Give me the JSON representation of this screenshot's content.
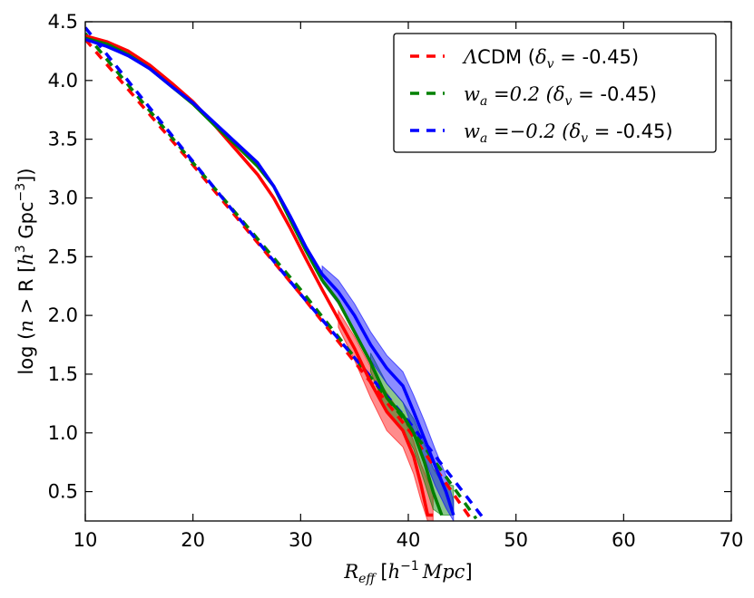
{
  "chart_data": {
    "type": "line",
    "xlim": [
      10,
      70
    ],
    "ylim": [
      0.25,
      4.5
    ],
    "xticks": [
      10,
      20,
      30,
      40,
      50,
      60,
      70
    ],
    "yticks": [
      0.5,
      1.0,
      1.5,
      2.0,
      2.5,
      3.0,
      3.5,
      4.0,
      4.5
    ],
    "xtick_labels": [
      "10",
      "20",
      "30",
      "40",
      "50",
      "60",
      "70"
    ],
    "ytick_labels": [
      "0.5",
      "1.0",
      "1.5",
      "2.0",
      "2.5",
      "3.0",
      "3.5",
      "4.0",
      "4.5"
    ],
    "xlabel": {
      "var": "R",
      "sub": "eff",
      "unit_open": "[",
      "unit_var": "h",
      "unit_exp": "−1",
      "unit_rest": "Mpc",
      "unit_close": "]"
    },
    "ylabel": {
      "pre": "log (",
      "var": "n",
      "mid": " > R [",
      "h": "h",
      "hexp": "3",
      "gpc": "  Gpc",
      "gexp": "−3",
      "close": "])"
    },
    "legend_position": "top-right",
    "series": [
      {
        "name": "LCDM",
        "color": "#ff0000",
        "legend": {
          "lead": "Λ",
          "text": "CDM (",
          "delta": "δ",
          "sub": "v",
          "tail": " = -0.45)"
        },
        "simulation": {
          "x": [
            10,
            12,
            14,
            16,
            18,
            20,
            22,
            24,
            26,
            27.5,
            29,
            30.5,
            32,
            33.5,
            35,
            36.5,
            38,
            39.5,
            40.5,
            41.2,
            41.8,
            42.3
          ],
          "y": [
            4.38,
            4.33,
            4.25,
            4.13,
            3.98,
            3.82,
            3.62,
            3.41,
            3.2,
            3.0,
            2.75,
            2.48,
            2.22,
            1.97,
            1.72,
            1.43,
            1.18,
            1.02,
            0.8,
            0.55,
            0.3,
            0.3
          ]
        },
        "band": {
          "x": [
            33.5,
            35,
            36.5,
            38,
            39.5,
            40.5,
            41.2,
            41.8,
            42.3
          ],
          "upper": [
            2.04,
            1.82,
            1.56,
            1.34,
            1.14,
            0.93,
            0.73,
            0.6,
            0.5
          ],
          "lower": [
            1.9,
            1.62,
            1.3,
            1.02,
            0.88,
            0.65,
            0.42,
            0.25,
            0.25
          ]
        },
        "theory": {
          "x": [
            10,
            20,
            30,
            40,
            45.8
          ],
          "y": [
            4.35,
            3.28,
            2.18,
            1.03,
            0.27
          ]
        }
      },
      {
        "name": "wa=0.2",
        "color": "#008000",
        "legend": {
          "var": "w",
          "sub": "a",
          "eq": " =0.2 (",
          "delta": "δ",
          "dsub": "v",
          "tail": " = -0.45)"
        },
        "simulation": {
          "x": [
            10,
            12,
            14,
            16,
            18,
            20,
            22,
            24,
            26,
            27.5,
            29,
            30.5,
            32,
            33.5,
            35,
            36.5,
            38,
            39.5,
            40.5,
            41.5,
            42.3,
            43.1
          ],
          "y": [
            4.36,
            4.31,
            4.22,
            4.1,
            3.95,
            3.8,
            3.62,
            3.45,
            3.27,
            3.1,
            2.82,
            2.55,
            2.3,
            2.12,
            1.86,
            1.6,
            1.3,
            1.15,
            1.0,
            0.75,
            0.5,
            0.3
          ]
        },
        "band": {
          "x": [
            36.5,
            38,
            39.5,
            40.5,
            41.5,
            42.3,
            43.1,
            44.2
          ],
          "upper": [
            1.68,
            1.42,
            1.26,
            1.12,
            0.9,
            0.7,
            0.58,
            0.55
          ],
          "lower": [
            1.52,
            1.18,
            1.02,
            0.86,
            0.58,
            0.35,
            0.3,
            0.3
          ]
        },
        "theory": {
          "x": [
            10,
            20,
            30,
            40,
            46.3
          ],
          "y": [
            4.4,
            3.3,
            2.22,
            1.07,
            0.27
          ]
        }
      },
      {
        "name": "wa=-0.2",
        "color": "#0000ff",
        "legend": {
          "var": "w",
          "sub": "a",
          "eq": " =−0.2 (",
          "delta": "δ",
          "dsub": "v",
          "tail": " = -0.45)"
        },
        "simulation": {
          "x": [
            10,
            12,
            14,
            16,
            18,
            20,
            22,
            24,
            26,
            27.5,
            29,
            30.5,
            32,
            33.5,
            35,
            36.5,
            38,
            39.5,
            40.5,
            41.5,
            42.5,
            43.5,
            44.2
          ],
          "y": [
            4.35,
            4.29,
            4.21,
            4.1,
            3.95,
            3.81,
            3.64,
            3.47,
            3.3,
            3.1,
            2.85,
            2.58,
            2.35,
            2.2,
            2.0,
            1.75,
            1.55,
            1.4,
            1.18,
            0.95,
            0.72,
            0.5,
            0.3
          ]
        },
        "band": {
          "x": [
            32,
            33.5,
            35,
            36.5,
            38,
            39.5,
            40.5,
            41.5,
            42.5,
            43.5,
            44.2
          ],
          "upper": [
            2.42,
            2.3,
            2.1,
            1.86,
            1.66,
            1.52,
            1.32,
            1.1,
            0.86,
            0.64,
            0.42
          ],
          "lower": [
            2.28,
            2.1,
            1.88,
            1.62,
            1.42,
            1.26,
            1.02,
            0.78,
            0.55,
            0.36,
            0.25
          ]
        },
        "theory": {
          "x": [
            10,
            20,
            30,
            40,
            47
          ],
          "y": [
            4.45,
            3.31,
            2.18,
            1.1,
            0.27
          ]
        }
      }
    ]
  }
}
